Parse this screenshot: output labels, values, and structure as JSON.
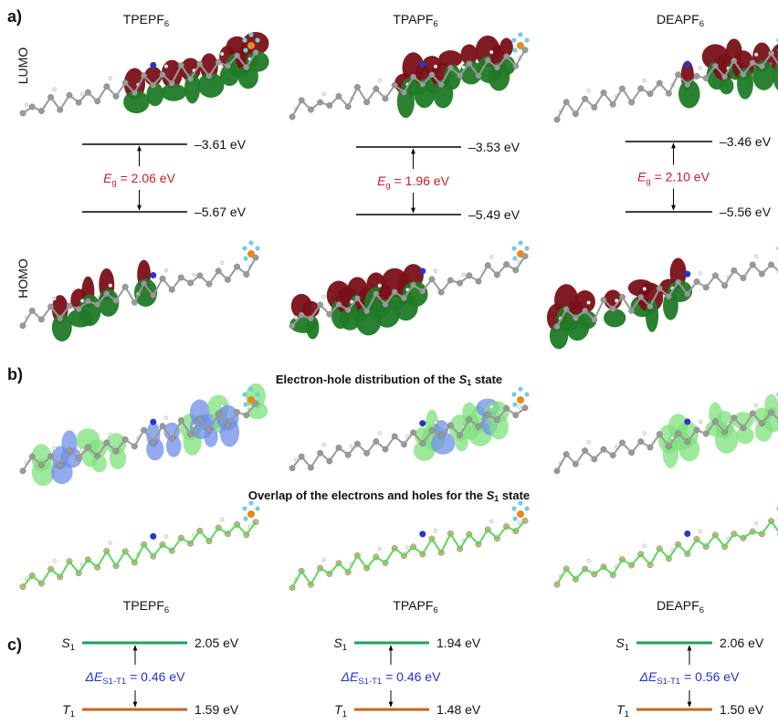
{
  "panel_a": {
    "label": "a)",
    "lumo_label": "LUMO",
    "homo_label": "HOMO",
    "compounds": [
      {
        "name": "TPEPF",
        "name_sub": "6",
        "lumo": "–3.61 eV",
        "homo": "–5.67 eV",
        "gap_symbol": "E",
        "gap_sub": "g",
        "gap": " = 2.06 eV"
      },
      {
        "name": "TPAPF",
        "name_sub": "6",
        "lumo": "–3.53 eV",
        "homo": "–5.49 eV",
        "gap_symbol": "E",
        "gap_sub": "g",
        "gap": " = 1.96 eV"
      },
      {
        "name": "DEAPF",
        "name_sub": "6",
        "lumo": "–3.46 eV",
        "homo": "–5.56 eV",
        "gap_symbol": "E",
        "gap_sub": "g",
        "gap": " = 2.10 eV"
      }
    ]
  },
  "panel_b": {
    "label": "b)",
    "title_1": {
      "text": "Electron-hole distribution of the ",
      "symbol": "S",
      "sub": "1",
      "end": " state"
    },
    "title_2": {
      "text": "Overlap of the electrons and holes for the ",
      "symbol": "S",
      "sub": "1",
      "end": " state"
    },
    "compounds": [
      {
        "name": "TPEPF",
        "name_sub": "6"
      },
      {
        "name": "TPAPF",
        "name_sub": "6"
      },
      {
        "name": "DEAPF",
        "name_sub": "6"
      }
    ]
  },
  "panel_c": {
    "label": "c)",
    "compounds": [
      {
        "s_symbol": "S",
        "s_sub": "1",
        "s_energy": "2.05 eV",
        "t_symbol": "T",
        "t_sub": "1",
        "t_energy": "1.59 eV",
        "delta_symbol": "ΔE",
        "delta_sub": "S1-T1",
        "delta": " = 0.46 eV"
      },
      {
        "s_symbol": "S",
        "s_sub": "1",
        "s_energy": "1.94 eV",
        "t_symbol": "T",
        "t_sub": "1",
        "t_energy": "1.48 eV",
        "delta_symbol": "ΔE",
        "delta_sub": "S1-T1",
        "delta": " = 0.46 eV"
      },
      {
        "s_symbol": "S",
        "s_sub": "1",
        "s_energy": "2.06 eV",
        "t_symbol": "T",
        "t_sub": "1",
        "t_energy": "1.50 eV",
        "delta_symbol": "ΔE",
        "delta_sub": "S1-T1",
        "delta": " = 0.56 eV"
      }
    ]
  }
}
